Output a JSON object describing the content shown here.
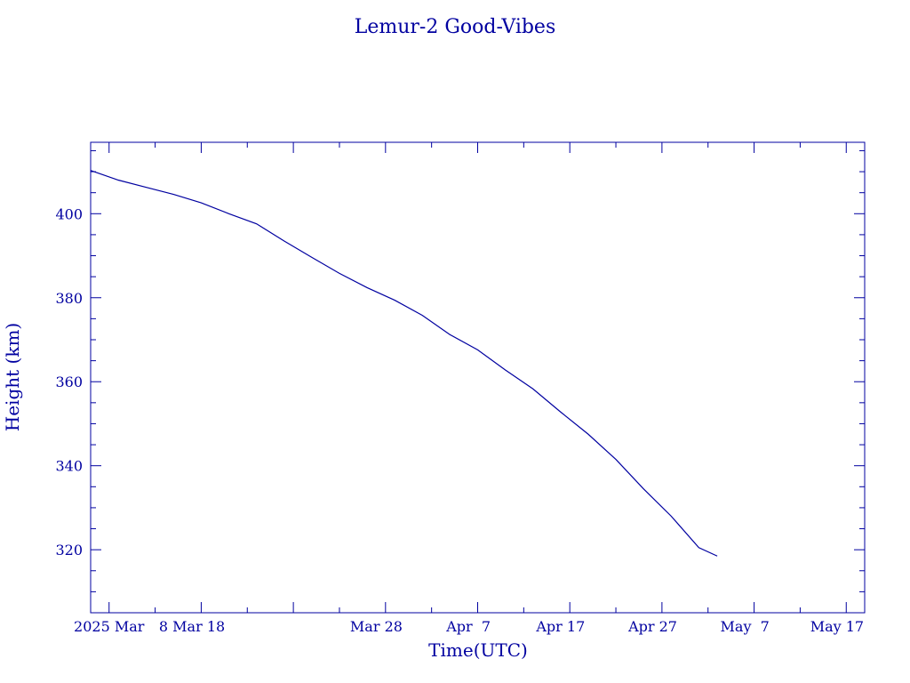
{
  "chart_data": {
    "type": "line",
    "title": "Lemur-2 Good-Vibes",
    "xlabel": "Time(UTC)",
    "ylabel": "Height (km)",
    "x_type": "date",
    "xlim": [
      "2025-02-25",
      "2025-05-20"
    ],
    "ylim": [
      305,
      417
    ],
    "x_ticks": [
      {
        "date": "2025-02-27",
        "label": "2025 Mar"
      },
      {
        "date": "2025-03-08",
        "label": "8 Mar 18"
      },
      {
        "date": "2025-03-28",
        "label": "Mar 28"
      },
      {
        "date": "2025-04-07",
        "label": "Apr  7"
      },
      {
        "date": "2025-04-17",
        "label": "Apr 17"
      },
      {
        "date": "2025-04-27",
        "label": "Apr 27"
      },
      {
        "date": "2025-05-07",
        "label": "May  7"
      },
      {
        "date": "2025-05-17",
        "label": "May 17"
      }
    ],
    "y_ticks": [
      320,
      340,
      360,
      380,
      400
    ],
    "grid": false,
    "color": "#0000a0",
    "series": [
      {
        "x": [
          "2025-02-25",
          "2025-02-28",
          "2025-03-03",
          "2025-03-06",
          "2025-03-09",
          "2025-03-12",
          "2025-03-15",
          "2025-03-18",
          "2025-03-21",
          "2025-03-24",
          "2025-03-27",
          "2025-03-30",
          "2025-04-02",
          "2025-04-05",
          "2025-04-08",
          "2025-04-11",
          "2025-04-14",
          "2025-04-17",
          "2025-04-20",
          "2025-04-23",
          "2025-04-26",
          "2025-04-29",
          "2025-05-02",
          "2025-05-04"
        ],
        "y": [
          410.3,
          408.0,
          406.3,
          404.6,
          402.6,
          400.0,
          397.6,
          393.5,
          389.6,
          385.8,
          382.4,
          379.4,
          375.8,
          371.2,
          367.6,
          362.8,
          358.3,
          352.8,
          347.5,
          341.5,
          334.5,
          328.0,
          320.5,
          318.5
        ]
      }
    ]
  }
}
